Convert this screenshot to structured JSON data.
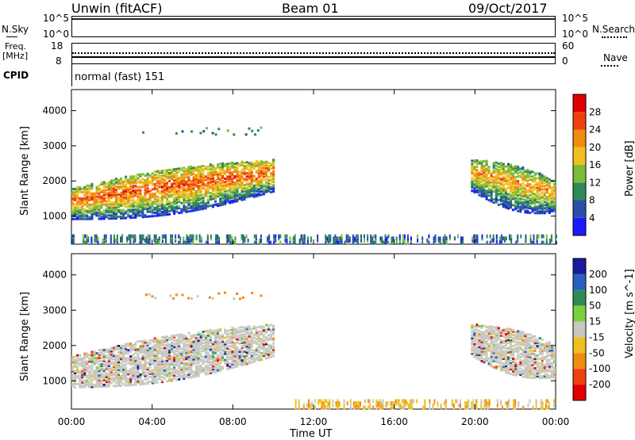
{
  "header": {
    "radar": "Unwin (fitACF)",
    "beam": "Beam 01",
    "date": "09/Oct/2017"
  },
  "sky_panel": {
    "left_label": "N.Sky",
    "right_label": "N.Search",
    "ticks_left": [
      "10^5",
      "10^0"
    ],
    "ticks_right": [
      "10^5",
      "10^0"
    ]
  },
  "freq_panel": {
    "left_label_line1": "Freq.",
    "left_label_line2": "[MHz]",
    "right_label": "Nave",
    "ticks_left": [
      "18",
      "8"
    ],
    "ticks_right": [
      "60",
      "0"
    ]
  },
  "cpid": {
    "label": "CPID",
    "value": "normal (fast) 151"
  },
  "chart_data": [
    {
      "type": "heatmap",
      "title": "",
      "xlabel": "",
      "ylabel": "Slant Range [km]",
      "x_ticks": [
        "00:00",
        "04:00",
        "08:00",
        "12:00",
        "16:00",
        "20:00",
        "00:00"
      ],
      "y_ticks": [
        1000,
        2000,
        3000,
        4000
      ],
      "ylim": [
        200,
        4600
      ],
      "colorbar_label": "Power [dB]",
      "colorbar_ticks": [
        4,
        8,
        12,
        16,
        20,
        24,
        28
      ],
      "colorbar_range": [
        0,
        32
      ],
      "colors": [
        "#1a1aff",
        "#2a4fa8",
        "#2e8b57",
        "#7dbb3a",
        "#f0c020",
        "#f08c10",
        "#f04010",
        "#e00000"
      ],
      "features": [
        {
          "name": "main-echo-band",
          "t_start_h": 0.0,
          "t_end_h": 10.0,
          "range_start_km": 1500,
          "range_end_km": 2300,
          "power_db": 26
        },
        {
          "name": "evening-echo-band",
          "t_start_h": 19.8,
          "t_end_h": 24.0,
          "range_start_km": 2300,
          "range_end_km": 1700,
          "power_db": 22
        },
        {
          "name": "near-range-scatter",
          "t_start_h": 0.0,
          "t_end_h": 24.0,
          "range_start_km": 300,
          "range_end_km": 500,
          "power_db": 8
        }
      ]
    },
    {
      "type": "heatmap",
      "title": "",
      "xlabel": "Time UT",
      "ylabel": "Slant Range [km]",
      "x_ticks": [
        "00:00",
        "04:00",
        "08:00",
        "12:00",
        "16:00",
        "20:00",
        "00:00"
      ],
      "y_ticks": [
        1000,
        2000,
        3000,
        4000
      ],
      "ylim": [
        200,
        4600
      ],
      "colorbar_label": "Velocity [m s^-1]",
      "colorbar_ticks": [
        200,
        100,
        50,
        15,
        -15,
        -50,
        -100,
        -200
      ],
      "colors": [
        "#1a1aa0",
        "#2a5fc0",
        "#2e8b57",
        "#7cd040",
        "#c8c8c0",
        "#f0c020",
        "#f08c10",
        "#f04010",
        "#e00000"
      ],
      "features": [
        {
          "name": "ground-scatter-band",
          "t_start_h": 0.0,
          "t_end_h": 10.0,
          "range_start_km": 1400,
          "range_end_km": 2300,
          "velocity": 0
        },
        {
          "name": "evening-ground-scatter",
          "t_start_h": 19.8,
          "t_end_h": 24.0,
          "range_start_km": 2300,
          "range_end_km": 1700,
          "velocity": 0
        },
        {
          "name": "near-range-echoes",
          "t_start_h": 11.0,
          "t_end_h": 24.0,
          "range_start_km": 300,
          "range_end_km": 500,
          "velocity": -50
        }
      ]
    }
  ]
}
